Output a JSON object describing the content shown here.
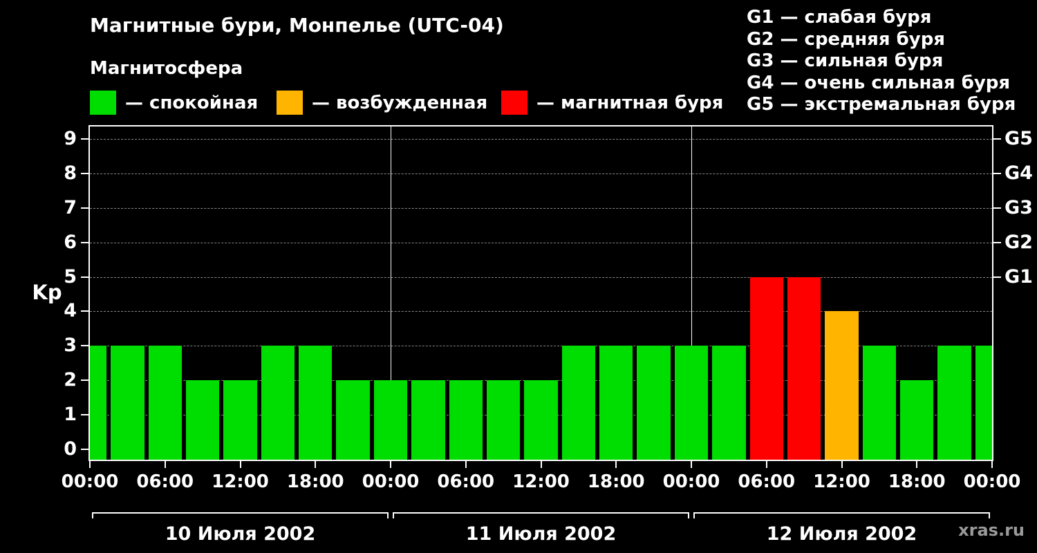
{
  "header": {
    "title": "Магнитные бури, Монпелье (UTC-04)",
    "subtitle": "Магнитосфера",
    "legend": [
      {
        "key": "quiet",
        "color": "#00dd00",
        "label": "— спокойная"
      },
      {
        "key": "excited",
        "color": "#ffb400",
        "label": "— возбужденная"
      },
      {
        "key": "storm",
        "color": "#ff0000",
        "label": "— магнитная буря"
      }
    ],
    "g_legend": [
      "G1 — слабая буря",
      "G2 — средняя буря",
      "G3 — сильная буря",
      "G4 — очень сильная буря",
      "G5 — экстремальная буря"
    ]
  },
  "watermark": "xras.ru",
  "chart_data": {
    "type": "bar",
    "title": "Магнитные бури, Монпелье (UTC-04)",
    "ylabel": "Kp",
    "xlabel": "",
    "ylim": [
      0,
      9.7
    ],
    "yticks": [
      0,
      1,
      2,
      3,
      4,
      5,
      6,
      7,
      8,
      9
    ],
    "right_axis": [
      {
        "label": "G1",
        "value": 5
      },
      {
        "label": "G2",
        "value": 6
      },
      {
        "label": "G3",
        "value": 7
      },
      {
        "label": "G4",
        "value": 8
      },
      {
        "label": "G5",
        "value": 9
      }
    ],
    "hours_total": 72,
    "bar_interval_hours": 3,
    "x_tick_hours": [
      0,
      6,
      12,
      18,
      24,
      30,
      36,
      42,
      48,
      54,
      60,
      66,
      72
    ],
    "x_tick_labels": [
      "00:00",
      "06:00",
      "12:00",
      "18:00",
      "00:00",
      "06:00",
      "12:00",
      "18:00",
      "00:00",
      "06:00",
      "12:00",
      "18:00",
      "00:00"
    ],
    "days": [
      {
        "label": "10 Июля 2002",
        "start_hour": 0,
        "values": [
          3,
          3,
          3,
          2,
          2,
          3,
          3,
          2
        ]
      },
      {
        "label": "11 Июля 2002",
        "start_hour": 24,
        "values": [
          2,
          2,
          2,
          2,
          2,
          3,
          3,
          3
        ]
      },
      {
        "label": "12 Июля 2002",
        "start_hour": 48,
        "values": [
          3,
          3,
          5,
          5,
          4,
          3,
          2,
          3
        ]
      }
    ],
    "trailing_bar_value": 3,
    "grid": "dashed-horizontal",
    "legend_position": "top",
    "day_separators_hours": [
      24,
      48
    ],
    "color_rule": {
      "storm_min_kp": 5,
      "excited_kp": 4
    },
    "colors": {
      "quiet": "#00dd00",
      "excited": "#ffb400",
      "storm": "#ff0000"
    }
  }
}
